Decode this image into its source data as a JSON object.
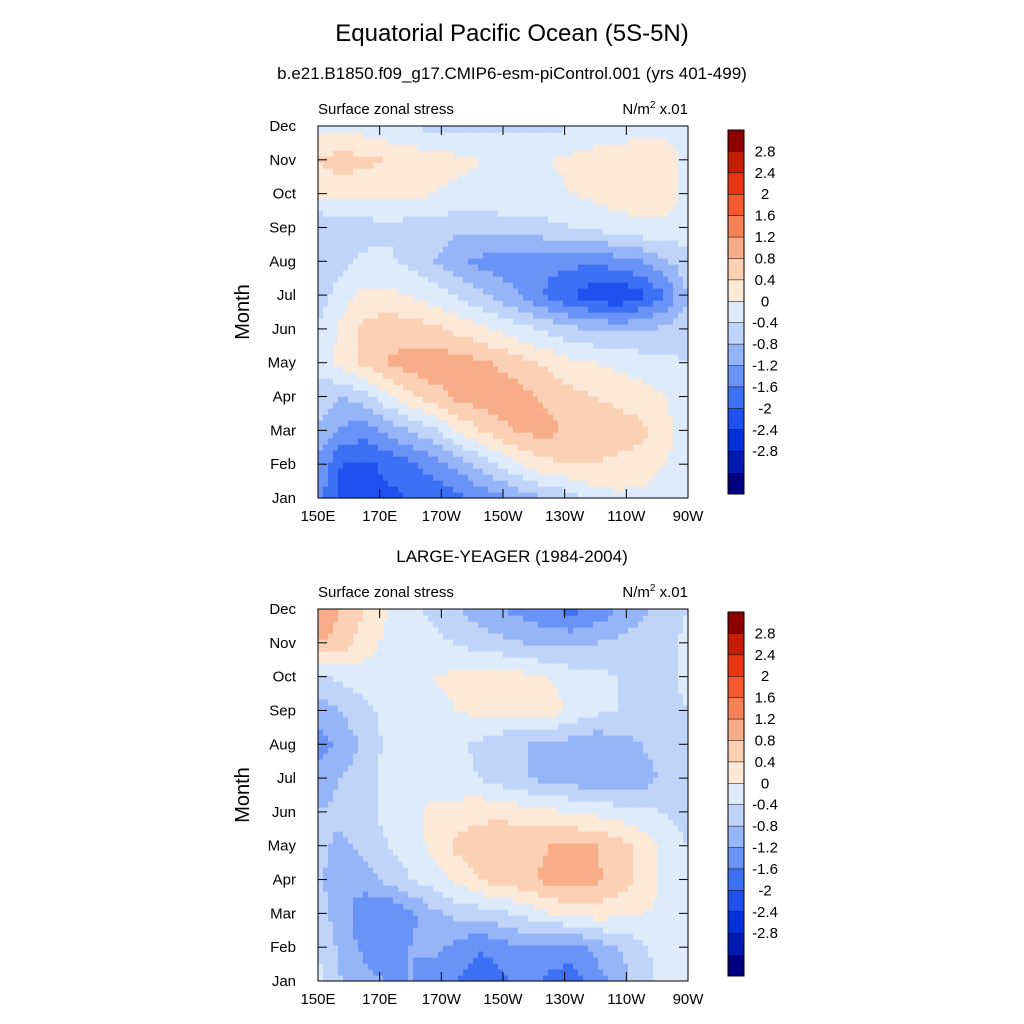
{
  "title": "Equatorial Pacific Ocean (5S-5N)",
  "subtitle": "b.e21.B1850.f09_g17.CMIP6-esm-piControl.001 (yrs 401-499)",
  "colors": {
    "levels": [
      "#00007f",
      "#001aaf",
      "#0030d8",
      "#1f51ee",
      "#3d70f5",
      "#6a93f7",
      "#96b5f8",
      "#c0d4f9",
      "#deebfb",
      "#fde9d8",
      "#fcd0b4",
      "#f9ac88",
      "#f78458",
      "#f45a30",
      "#e83612",
      "#c41f05",
      "#8c0000"
    ]
  },
  "chart_data": [
    {
      "type": "heatmap",
      "title": "b.e21.B1850.f09_g17.CMIP6-esm-piControl.001 (yrs 401-499)",
      "left_label": "Surface zonal stress",
      "right_label": "N/m",
      "right_label_sup": "2",
      "right_label_suffix": " x.01",
      "ylabel": "Month",
      "x_ticks": [
        "150E",
        "170E",
        "170W",
        "150W",
        "130W",
        "110W",
        "90W"
      ],
      "y_ticks": [
        "Jan",
        "Feb",
        "Mar",
        "Apr",
        "May",
        "Jun",
        "Jul",
        "Aug",
        "Sep",
        "Oct",
        "Nov",
        "Dec"
      ],
      "colorbar_labels": [
        "2.8",
        "2.4",
        "2",
        "1.6",
        "1.2",
        "0.8",
        "0.4",
        "0",
        "-0.4",
        "-0.8",
        "-1.2",
        "-1.6",
        "-2",
        "-2.4",
        "-2.8"
      ],
      "grid_note": "rows = months Jan..Dec, columns = longitude 150E..90W",
      "z": [
        [
          -1.0,
          -1.7,
          -1.8,
          -1.7,
          -1.6,
          -1.5,
          -1.3,
          -1.1,
          -0.9,
          -0.6,
          -0.4,
          -0.2,
          0.2,
          0.3,
          0.3,
          0.2,
          0.1
        ],
        [
          -0.9,
          -1.6,
          -1.7,
          -1.5,
          -1.3,
          -1.0,
          -0.7,
          -0.3,
          0.1,
          0.5,
          0.7,
          0.8,
          0.8,
          0.7,
          0.6,
          0.4,
          0.1
        ],
        [
          -0.4,
          -0.9,
          -1.0,
          -0.7,
          -0.4,
          -0.1,
          0.4,
          0.8,
          1.1,
          1.3,
          1.3,
          1.1,
          1.0,
          1.0,
          0.9,
          0.6,
          0.1
        ],
        [
          -0.2,
          -0.4,
          -0.2,
          0.3,
          0.7,
          1.0,
          1.3,
          1.4,
          1.5,
          1.3,
          1.1,
          0.9,
          0.8,
          0.7,
          0.6,
          0.4,
          0.1
        ],
        [
          0.2,
          0.5,
          0.9,
          1.2,
          1.4,
          1.5,
          1.4,
          1.3,
          1.1,
          0.9,
          0.7,
          0.5,
          0.4,
          0.3,
          0.2,
          0.1,
          0.0
        ],
        [
          0.0,
          0.5,
          0.9,
          1.1,
          1.0,
          0.9,
          0.7,
          0.5,
          0.3,
          0.1,
          -0.1,
          -0.3,
          -0.4,
          -0.5,
          -0.4,
          -0.3,
          -0.1
        ],
        [
          -0.2,
          0.2,
          0.5,
          0.5,
          0.4,
          0.2,
          0.0,
          -0.3,
          -0.6,
          -0.9,
          -1.3,
          -1.6,
          -1.9,
          -2.0,
          -1.7,
          -1.2,
          -0.4
        ],
        [
          -0.3,
          -0.1,
          0.1,
          0.1,
          -0.1,
          -0.4,
          -0.7,
          -0.9,
          -1.0,
          -1.1,
          -1.1,
          -1.1,
          -1.1,
          -1.0,
          -0.8,
          -0.5,
          -0.1
        ],
        [
          -0.4,
          -0.3,
          -0.2,
          -0.1,
          -0.2,
          -0.2,
          -0.3,
          -0.3,
          -0.2,
          -0.2,
          -0.1,
          0.0,
          0.1,
          0.2,
          0.3,
          0.3,
          0.2
        ],
        [
          0.5,
          0.5,
          0.5,
          0.5,
          0.5,
          0.4,
          0.3,
          0.3,
          0.3,
          0.3,
          0.3,
          0.4,
          0.5,
          0.6,
          0.6,
          0.6,
          0.3
        ],
        [
          0.8,
          1.0,
          0.9,
          0.8,
          0.7,
          0.6,
          0.5,
          0.4,
          0.3,
          0.3,
          0.4,
          0.5,
          0.6,
          0.6,
          0.6,
          0.6,
          0.3
        ],
        [
          0.3,
          0.3,
          0.2,
          0.1,
          0.0,
          -0.1,
          -0.1,
          -0.1,
          -0.1,
          -0.1,
          -0.1,
          0.0,
          0.1,
          0.2,
          0.3,
          0.3,
          0.2
        ]
      ]
    },
    {
      "type": "heatmap",
      "title": "LARGE-YEAGER (1984-2004)",
      "left_label": "Surface zonal stress",
      "right_label": "N/m",
      "right_label_sup": "2",
      "right_label_suffix": " x.01",
      "ylabel": "Month",
      "x_ticks": [
        "150E",
        "170E",
        "170W",
        "150W",
        "130W",
        "110W",
        "90W"
      ],
      "y_ticks": [
        "Jan",
        "Feb",
        "Mar",
        "Apr",
        "May",
        "Jun",
        "Jul",
        "Aug",
        "Sep",
        "Oct",
        "Nov",
        "Dec"
      ],
      "colorbar_labels": [
        "2.8",
        "2.4",
        "2",
        "1.6",
        "1.2",
        "0.8",
        "0.4",
        "0",
        "-0.4",
        "-0.8",
        "-1.2",
        "-1.6",
        "-2",
        "-2.4",
        "-2.8"
      ],
      "grid_note": "rows = months Jan..Dec, columns = longitude 150E..90W",
      "z": [
        [
          0.2,
          -0.4,
          -0.7,
          -0.8,
          -0.8,
          -1.0,
          -1.2,
          -1.4,
          -1.3,
          -1.0,
          -1.3,
          -1.4,
          -1.0,
          -0.6,
          -0.2,
          0.2,
          0.3
        ],
        [
          -0.1,
          -0.5,
          -0.9,
          -1.0,
          -0.8,
          -0.7,
          -0.9,
          -1.2,
          -1.0,
          -0.8,
          -1.0,
          -1.0,
          -0.7,
          -0.4,
          -0.1,
          0.2,
          0.3
        ],
        [
          -0.2,
          -0.6,
          -1.1,
          -1.2,
          -0.9,
          -0.5,
          -0.3,
          -0.2,
          -0.1,
          0.1,
          0.4,
          0.5,
          0.6,
          0.5,
          0.4,
          0.3,
          0.2
        ],
        [
          -0.3,
          -0.7,
          -0.6,
          -0.3,
          0.0,
          0.2,
          0.5,
          0.8,
          1.0,
          1.1,
          1.3,
          1.4,
          1.3,
          1.0,
          0.7,
          0.3,
          0.1
        ],
        [
          -0.3,
          -0.5,
          -0.3,
          0.0,
          0.2,
          0.5,
          0.9,
          1.0,
          1.1,
          1.1,
          1.2,
          1.3,
          1.2,
          1.0,
          0.7,
          0.3,
          0.0
        ],
        [
          -0.4,
          -0.3,
          -0.1,
          0.1,
          0.3,
          0.5,
          0.6,
          0.7,
          0.7,
          0.6,
          0.5,
          0.4,
          0.3,
          0.2,
          0.1,
          0.0,
          -0.2
        ],
        [
          -0.6,
          -0.4,
          -0.1,
          0.1,
          0.2,
          0.2,
          0.1,
          0.0,
          -0.2,
          -0.4,
          -0.5,
          -0.6,
          -0.7,
          -0.8,
          -0.6,
          -0.3,
          -0.1
        ],
        [
          -1.0,
          -0.7,
          -0.3,
          0.1,
          0.2,
          0.2,
          0.1,
          -0.1,
          -0.3,
          -0.4,
          -0.5,
          -0.6,
          -0.7,
          -0.6,
          -0.4,
          -0.2,
          -0.1
        ],
        [
          -0.6,
          -0.4,
          -0.1,
          0.1,
          0.2,
          0.3,
          0.4,
          0.5,
          0.5,
          0.6,
          0.6,
          0.3,
          0.1,
          0.0,
          -0.1,
          -0.1,
          0.0
        ],
        [
          -0.1,
          0.1,
          0.2,
          0.3,
          0.3,
          0.4,
          0.5,
          0.5,
          0.6,
          0.5,
          0.4,
          0.2,
          0.1,
          0.0,
          -0.1,
          -0.1,
          0.1
        ],
        [
          1.2,
          1.0,
          0.6,
          0.3,
          0.2,
          0.1,
          0.0,
          -0.2,
          -0.3,
          -0.4,
          -0.5,
          -0.5,
          -0.4,
          -0.3,
          -0.2,
          -0.1,
          0.1
        ],
        [
          1.6,
          1.2,
          0.8,
          0.4,
          0.1,
          -0.1,
          -0.4,
          -0.6,
          -0.8,
          -1.0,
          -1.2,
          -1.3,
          -1.1,
          -0.8,
          -0.5,
          -0.2,
          0.0
        ]
      ]
    }
  ]
}
